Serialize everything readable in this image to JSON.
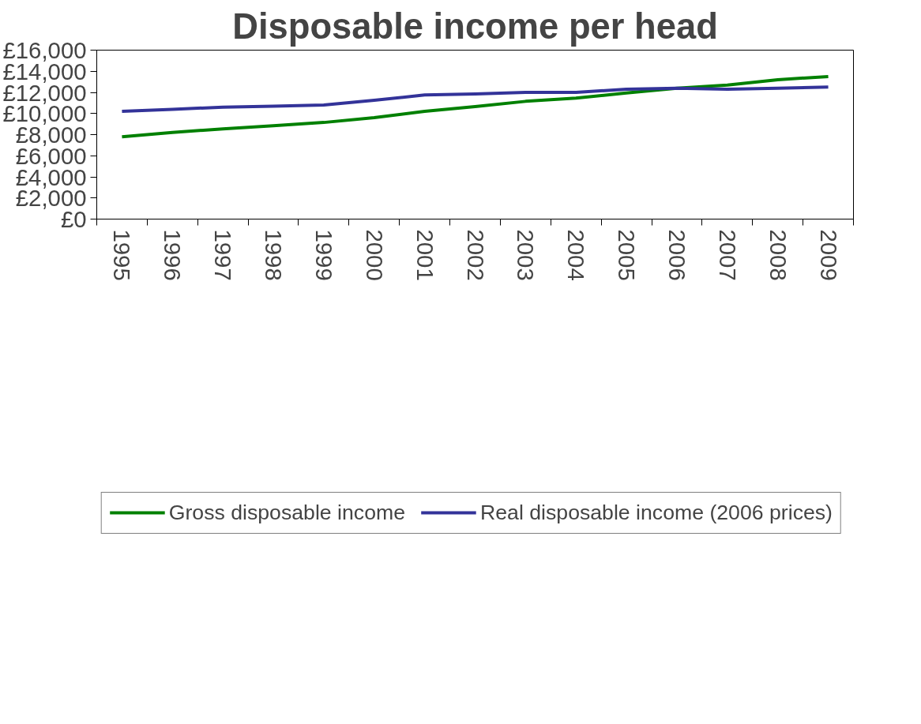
{
  "chart_data": {
    "type": "line",
    "title": "Disposable income per head",
    "categories": [
      "1995",
      "1996",
      "1997",
      "1998",
      "1999",
      "2000",
      "2001",
      "2002",
      "2003",
      "2004",
      "2005",
      "2006",
      "2007",
      "2008",
      "2009"
    ],
    "series": [
      {
        "name": "Gross disposable income",
        "color": "#008000",
        "values": [
          7800,
          8200,
          8550,
          8850,
          9150,
          9600,
          10200,
          10650,
          11150,
          11450,
          11950,
          12400,
          12700,
          13200,
          13500
        ]
      },
      {
        "name": "Real disposable income (2006 prices)",
        "color": "#333399",
        "values": [
          10200,
          10400,
          10600,
          10700,
          10800,
          11250,
          11750,
          11850,
          12000,
          12000,
          12300,
          12400,
          12300,
          12400,
          12500
        ]
      }
    ],
    "ylim": [
      0,
      16000
    ],
    "yticks": [
      {
        "value": 0,
        "label": "£0"
      },
      {
        "value": 2000,
        "label": "£2,000"
      },
      {
        "value": 4000,
        "label": "£4,000"
      },
      {
        "value": 6000,
        "label": "£6,000"
      },
      {
        "value": 8000,
        "label": "£8,000"
      },
      {
        "value": 10000,
        "label": "£10,000"
      },
      {
        "value": 12000,
        "label": "£12,000"
      },
      {
        "value": 14000,
        "label": "£14,000"
      },
      {
        "value": 16000,
        "label": "£16,000"
      }
    ],
    "grid": false,
    "legend": "bottom",
    "marker": "none",
    "line_style": "solid"
  }
}
